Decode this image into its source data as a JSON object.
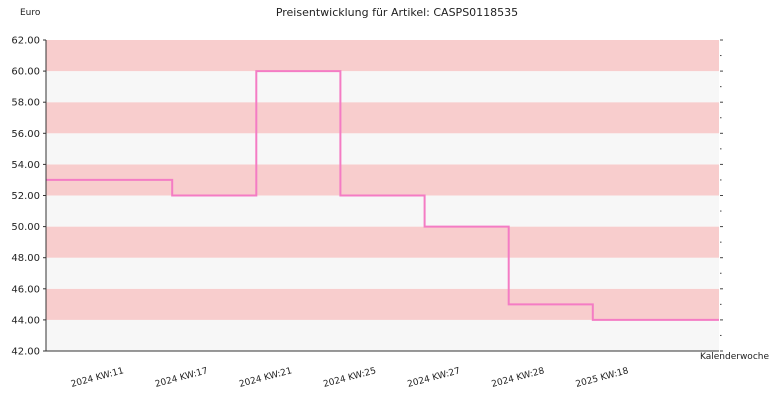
{
  "chart_data": {
    "type": "line",
    "title": "Preisentwicklung für Artikel: CASPS0118535",
    "ylabel": "Euro",
    "xlabel": "Kalenderwoche",
    "ylim": [
      42,
      62
    ],
    "y_ticks": [
      "42.00",
      "44.00",
      "46.00",
      "48.00",
      "50.00",
      "52.00",
      "54.00",
      "56.00",
      "58.00",
      "60.00",
      "62.00"
    ],
    "categories": [
      "2024 KW:11",
      "2024 KW:17",
      "2024 KW:21",
      "2024 KW:25",
      "2024 KW:27",
      "2024 KW:28",
      "2025 KW:18"
    ],
    "series": [
      {
        "values": [
          53,
          52,
          60,
          52,
          50,
          45,
          44
        ]
      }
    ],
    "step": true,
    "grid": "alternating horizontal bands",
    "colors": {
      "line": "#f47cc4",
      "band_dark": "#f8cdcd",
      "band_light": "#f7f7f7",
      "axis": "#333333"
    }
  }
}
